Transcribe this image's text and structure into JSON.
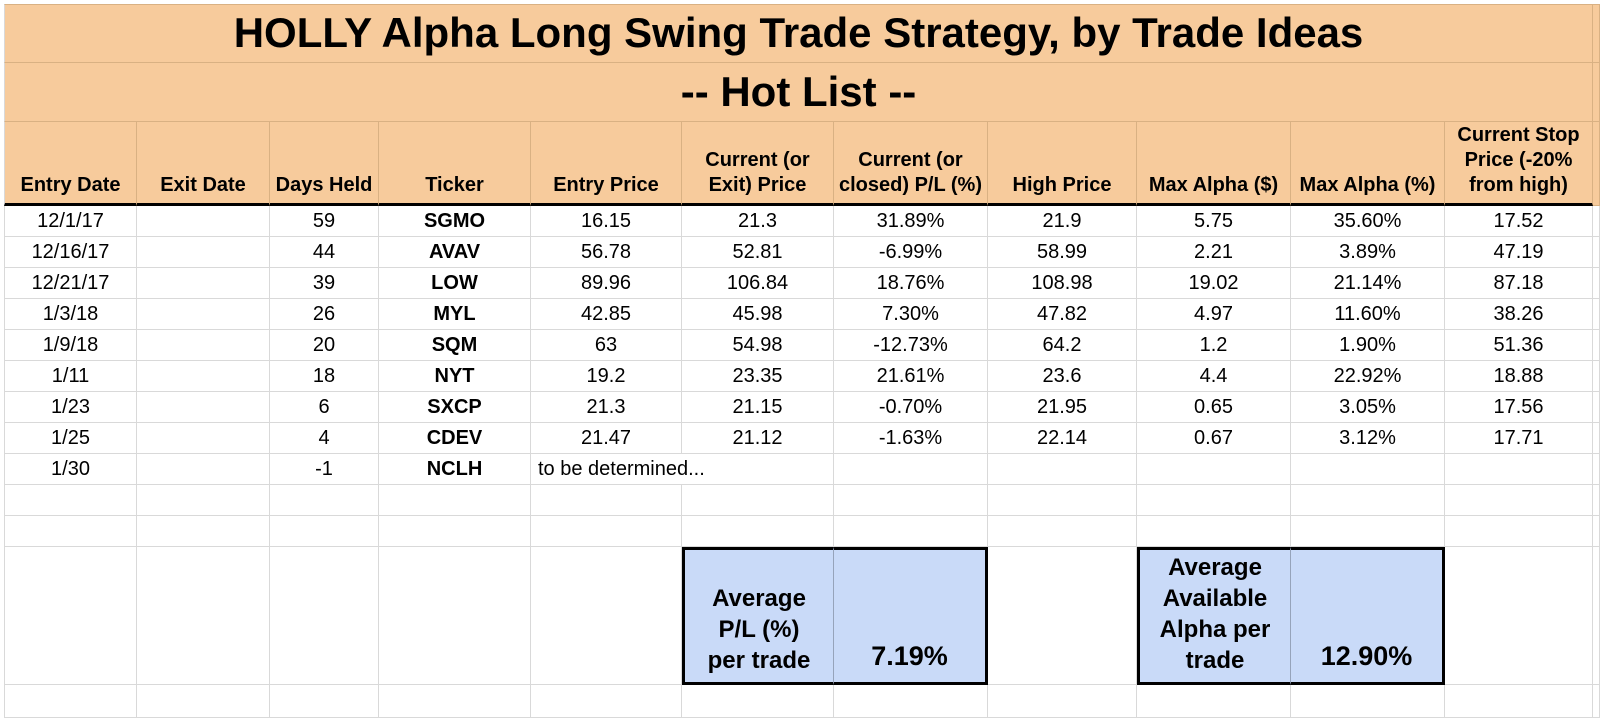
{
  "title": "HOLLY Alpha Long Swing Trade Strategy, by Trade Ideas",
  "subtitle": "-- Hot List --",
  "columns": [
    "Entry Date",
    "Exit Date",
    "Days Held",
    "Ticker",
    "Entry Price",
    "Current (or Exit) Price",
    "Current (or closed) P/L (%)",
    "High Price",
    "Max Alpha ($)",
    "Max Alpha (%)",
    "Current Stop Price (-20% from high)"
  ],
  "rows": [
    {
      "entry_date": "12/1/17",
      "exit_date": "",
      "days_held": "59",
      "ticker": "SGMO",
      "entry_price": "16.15",
      "current_price": "21.3",
      "pl_pct": "31.89%",
      "high_price": "21.9",
      "max_alpha_usd": "5.75",
      "max_alpha_pct": "35.60%",
      "stop_price": "17.52"
    },
    {
      "entry_date": "12/16/17",
      "exit_date": "",
      "days_held": "44",
      "ticker": "AVAV",
      "entry_price": "56.78",
      "current_price": "52.81",
      "pl_pct": "-6.99%",
      "high_price": "58.99",
      "max_alpha_usd": "2.21",
      "max_alpha_pct": "3.89%",
      "stop_price": "47.19"
    },
    {
      "entry_date": "12/21/17",
      "exit_date": "",
      "days_held": "39",
      "ticker": "LOW",
      "entry_price": "89.96",
      "current_price": "106.84",
      "pl_pct": "18.76%",
      "high_price": "108.98",
      "max_alpha_usd": "19.02",
      "max_alpha_pct": "21.14%",
      "stop_price": "87.18"
    },
    {
      "entry_date": "1/3/18",
      "exit_date": "",
      "days_held": "26",
      "ticker": "MYL",
      "entry_price": "42.85",
      "current_price": "45.98",
      "pl_pct": "7.30%",
      "high_price": "47.82",
      "max_alpha_usd": "4.97",
      "max_alpha_pct": "11.60%",
      "stop_price": "38.26"
    },
    {
      "entry_date": "1/9/18",
      "exit_date": "",
      "days_held": "20",
      "ticker": "SQM",
      "entry_price": "63",
      "current_price": "54.98",
      "pl_pct": "-12.73%",
      "high_price": "64.2",
      "max_alpha_usd": "1.2",
      "max_alpha_pct": "1.90%",
      "stop_price": "51.36"
    },
    {
      "entry_date": "1/11",
      "exit_date": "",
      "days_held": "18",
      "ticker": "NYT",
      "entry_price": "19.2",
      "current_price": "23.35",
      "pl_pct": "21.61%",
      "high_price": "23.6",
      "max_alpha_usd": "4.4",
      "max_alpha_pct": "22.92%",
      "stop_price": "18.88"
    },
    {
      "entry_date": "1/23",
      "exit_date": "",
      "days_held": "6",
      "ticker": "SXCP",
      "entry_price": "21.3",
      "current_price": "21.15",
      "pl_pct": "-0.70%",
      "high_price": "21.95",
      "max_alpha_usd": "0.65",
      "max_alpha_pct": "3.05%",
      "stop_price": "17.56"
    },
    {
      "entry_date": "1/25",
      "exit_date": "",
      "days_held": "4",
      "ticker": "CDEV",
      "entry_price": "21.47",
      "current_price": "21.12",
      "pl_pct": "-1.63%",
      "high_price": "22.14",
      "max_alpha_usd": "0.67",
      "max_alpha_pct": "3.12%",
      "stop_price": "17.71"
    },
    {
      "entry_date": "1/30",
      "exit_date": "",
      "days_held": "-1",
      "ticker": "NCLH",
      "note": "to be determined...",
      "entry_price": "",
      "current_price": "",
      "pl_pct": "",
      "high_price": "",
      "max_alpha_usd": "",
      "max_alpha_pct": "",
      "stop_price": ""
    }
  ],
  "summary": [
    {
      "label": "Average P/L (%) per trade",
      "value": "7.19%"
    },
    {
      "label": "Average Available Alpha per trade",
      "value": "12.90%"
    }
  ],
  "empty_row_count": 2,
  "colors": {
    "header_bg": "#f7cb9c",
    "summary_bg": "#c9daf8",
    "gridline": "#d9d9d9",
    "orange_gridline": "#d9b183",
    "summary_border": "#000000",
    "text": "#000000"
  }
}
